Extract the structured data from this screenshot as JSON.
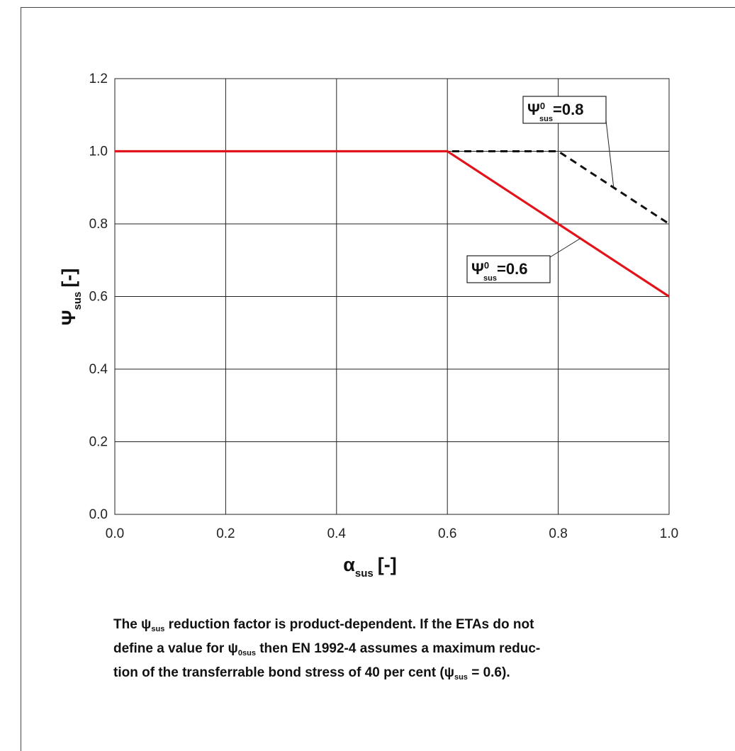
{
  "chart_data": {
    "type": "line",
    "xlabel": "α",
    "xlabel_sub": "sus",
    "xlabel_suffix": "[-]",
    "ylabel": "Ψ",
    "ylabel_sub": "sus",
    "ylabel_suffix": "[-]",
    "xlim": [
      0.0,
      1.0
    ],
    "ylim": [
      0.0,
      1.2
    ],
    "x_ticks": [
      "0.0",
      "0.2",
      "0.4",
      "0.6",
      "0.8",
      "1.0"
    ],
    "y_ticks": [
      "0.0",
      "0.2",
      "0.4",
      "0.6",
      "0.8",
      "1.0",
      "1.2"
    ],
    "grid": true,
    "series": [
      {
        "name": "Ψ0sus=0.6",
        "label_symbol": "Ψ",
        "label_sup": "0",
        "label_sub": "sus",
        "label_value": "=0.6",
        "color": "#e3131b",
        "style": "solid",
        "points": [
          [
            0.0,
            1.0
          ],
          [
            0.6,
            1.0
          ],
          [
            1.0,
            0.6
          ]
        ]
      },
      {
        "name": "Ψ0sus=0.8",
        "label_symbol": "Ψ",
        "label_sup": "0",
        "label_sub": "sus",
        "label_value": "=0.8",
        "color": "#111111",
        "style": "dashed",
        "points": [
          [
            0.0,
            1.0
          ],
          [
            0.8,
            1.0
          ],
          [
            1.0,
            0.8
          ]
        ]
      }
    ]
  },
  "caption": {
    "line1_a": "The ψ",
    "line1_sub": "sus",
    "line1_b": " reduction factor is product-dependent. If the ETAs do not",
    "line2_a": "define a value for ψ",
    "line2_sub": "0sus",
    "line2_b": " then EN 1992-4 assumes a maximum reduc-",
    "line3_a": "tion of the transferrable bond stress of 40 per cent (ψ",
    "line3_sub": "sus",
    "line3_b": " = 0.6)."
  }
}
